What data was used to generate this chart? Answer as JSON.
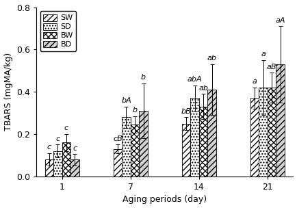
{
  "series": {
    "SW": [
      0.08,
      0.13,
      0.25,
      0.37
    ],
    "SD": [
      0.12,
      0.28,
      0.37,
      0.42
    ],
    "BW": [
      0.16,
      0.245,
      0.33,
      0.42
    ],
    "BD": [
      0.08,
      0.31,
      0.41,
      0.53
    ]
  },
  "errors": {
    "SW": [
      0.03,
      0.02,
      0.03,
      0.05
    ],
    "SD": [
      0.03,
      0.05,
      0.06,
      0.13
    ],
    "BW": [
      0.04,
      0.04,
      0.06,
      0.07
    ],
    "BD": [
      0.025,
      0.13,
      0.12,
      0.18
    ]
  },
  "annotations": {
    "0": [
      "c",
      "c",
      "c",
      "c"
    ],
    "1": [
      "cB",
      "bA",
      "b",
      "b"
    ],
    "2": [
      "bB",
      "abA",
      "ab",
      "ab"
    ],
    "3": [
      "a",
      "a",
      "aB",
      "aA"
    ]
  },
  "x_tick_labels": [
    "1",
    "7",
    "14",
    "21"
  ],
  "ylabel": "TBARS (mgMA/kg)",
  "xlabel": "Aging periods (day)",
  "ylim": [
    0.0,
    0.8
  ],
  "yticks": [
    0.0,
    0.2,
    0.4,
    0.6,
    0.8
  ],
  "bar_width": 0.15,
  "group_centers": [
    1.0,
    2.2,
    3.4,
    4.6
  ],
  "hatch_patterns": [
    "////",
    "....",
    "xxxx",
    "////"
  ],
  "facecolors": [
    "white",
    "white",
    "white",
    "lightgray"
  ],
  "edgecolor": "black",
  "legend_labels": [
    "SW",
    "SD",
    "BW",
    "BD"
  ],
  "label_fontsize": 9,
  "tick_fontsize": 9,
  "annot_fontsize": 8,
  "legend_fontsize": 8
}
